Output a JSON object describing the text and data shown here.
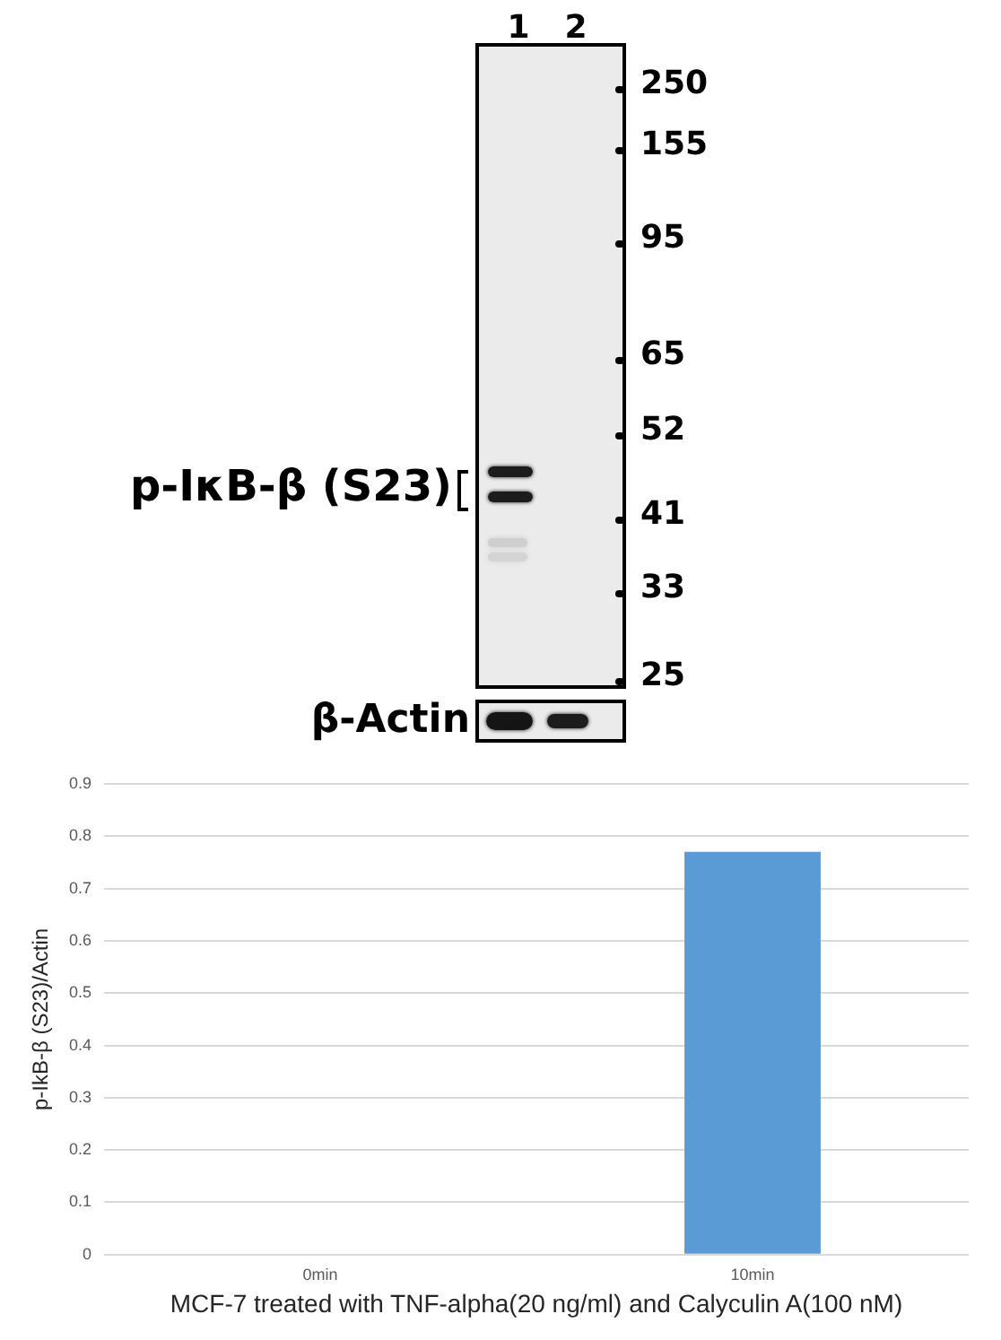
{
  "chart_data": [
    {
      "type": "other",
      "categories": [
        "1",
        "2"
      ],
      "annotations": [
        "250",
        "155",
        "95",
        "65",
        "52",
        "41",
        "33",
        "25",
        "p-IκB-β (S23)",
        "β-Actin"
      ]
    },
    {
      "type": "bar",
      "categories": [
        "0min",
        "10min"
      ],
      "values": [
        0,
        0.77
      ],
      "color": "#5b9bd5",
      "ylim": [
        0,
        0.9
      ],
      "yticks": [
        0,
        0.1,
        0.2,
        0.3,
        0.4,
        0.5,
        0.6,
        0.7,
        0.8,
        0.9
      ],
      "grid": "y",
      "xlabel": "MCF-7 treated with TNF-alpha(20 ng/ml) and Calyculin A(100 nM)",
      "ylabel": "p-IkB-β (S23)/Actin"
    }
  ]
}
